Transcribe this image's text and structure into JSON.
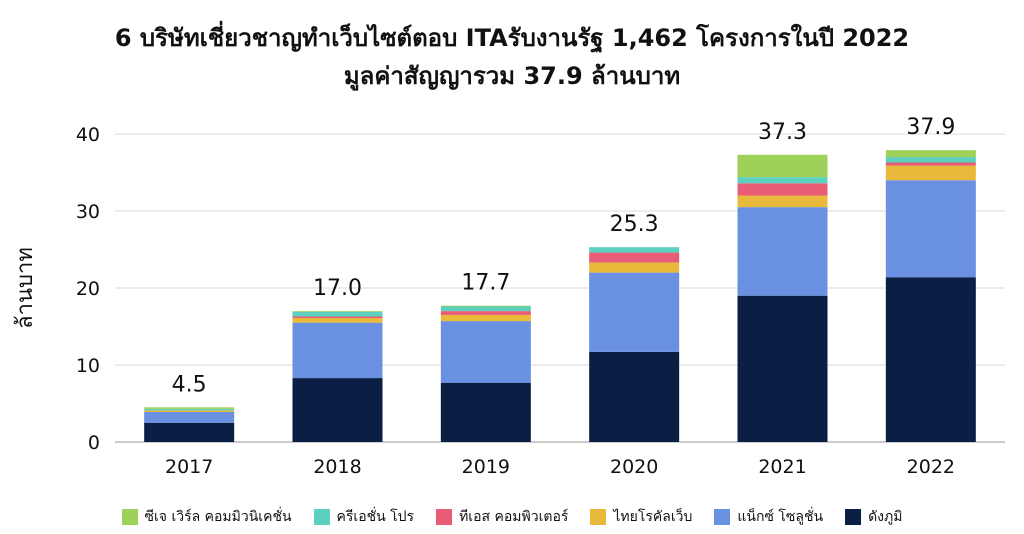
{
  "chart_data": {
    "type": "bar",
    "stacked": true,
    "title": "6 บริษัทเชี่ยวชาญทำเว็บไซต์ตอบ ITAรับงานรัฐ 1,462 โครงการในปี 2022",
    "subtitle": "มูลค่าสัญญารวม 37.9 ล้านบาท",
    "ylabel": "ล้านบาท",
    "xlabel": "",
    "ylim": [
      0,
      40
    ],
    "yticks": [
      "0",
      "10",
      "20",
      "30",
      "40"
    ],
    "grid": true,
    "legend_position": "bottom",
    "categories": [
      "2017",
      "2018",
      "2019",
      "2020",
      "2021",
      "2022"
    ],
    "totals": [
      "4.5",
      "17.0",
      "17.7",
      "25.3",
      "37.3",
      "37.9"
    ],
    "total_values": [
      4.5,
      17.0,
      17.7,
      25.3,
      37.3,
      37.9
    ],
    "series": [
      {
        "name": "ดังภูมิ",
        "color": "#0b1f45",
        "values": [
          2.5,
          8.3,
          7.7,
          11.7,
          19.0,
          21.4
        ]
      },
      {
        "name": "แน็กซ์ โซลูชั่น",
        "color": "#6a90e2",
        "values": [
          1.4,
          7.2,
          8.0,
          10.3,
          11.5,
          12.6
        ]
      },
      {
        "name": "ไทยโรคัลเว็บ",
        "color": "#e8b93a",
        "values": [
          0.2,
          0.6,
          0.8,
          1.3,
          1.5,
          1.9
        ]
      },
      {
        "name": "ทีเอส คอมพิวเตอร์",
        "color": "#e85d75",
        "values": [
          0.0,
          0.2,
          0.5,
          1.3,
          1.6,
          0.4
        ]
      },
      {
        "name": "ครีเอชั่น โปร",
        "color": "#5ccfbf",
        "values": [
          0.2,
          0.6,
          0.6,
          0.7,
          0.8,
          0.7
        ]
      },
      {
        "name": "ซีเจ เวิร์ล คอมมิวนิเคชั่น",
        "color": "#9ed15a",
        "values": [
          0.2,
          0.1,
          0.1,
          0.0,
          2.9,
          0.9
        ]
      }
    ],
    "legend_order": [
      5,
      4,
      3,
      2,
      1,
      0
    ]
  }
}
